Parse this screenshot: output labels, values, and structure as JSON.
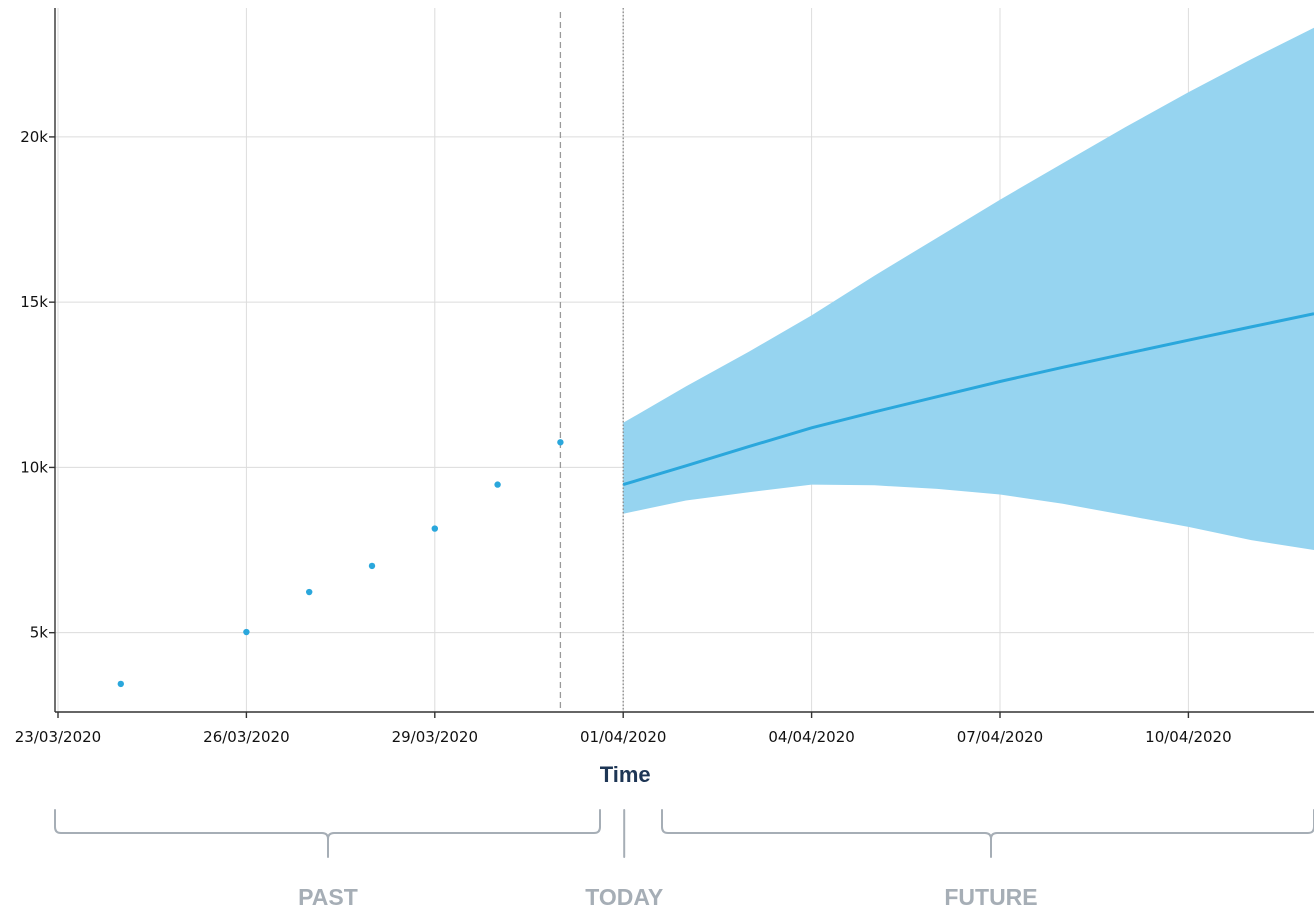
{
  "chart_data": {
    "type": "line",
    "xlabel": "Time",
    "ylabel": "",
    "xlim": [
      "2020-03-23",
      "2020-04-12"
    ],
    "ylim": [
      2600,
      23900
    ],
    "x_ticks": [
      "2020-03-23",
      "2020-03-26",
      "2020-03-29",
      "2020-04-01",
      "2020-04-04",
      "2020-04-07",
      "2020-04-10"
    ],
    "x_tick_labels": [
      "23/03/2020",
      "26/03/2020",
      "29/03/2020",
      "01/04/2020",
      "04/04/2020",
      "07/04/2020",
      "10/04/2020"
    ],
    "y_ticks": [
      5000,
      10000,
      15000,
      20000
    ],
    "y_tick_labels": [
      "5k",
      "10k",
      "15k",
      "20k"
    ],
    "grid": true,
    "series": [
      {
        "kind": "observed",
        "style": "scatter",
        "x": [
          "2020-03-24",
          "2020-03-26",
          "2020-03-27",
          "2020-03-28",
          "2020-03-29",
          "2020-03-30",
          "2020-03-31"
        ],
        "y": [
          3450,
          5020,
          6230,
          7020,
          8150,
          9480,
          10760
        ]
      },
      {
        "kind": "forecast",
        "style": "line",
        "x": [
          "2020-04-01",
          "2020-04-02",
          "2020-04-03",
          "2020-04-04",
          "2020-04-05",
          "2020-04-06",
          "2020-04-07",
          "2020-04-08",
          "2020-04-09",
          "2020-04-10",
          "2020-04-11",
          "2020-04-12"
        ],
        "y": [
          9480,
          10050,
          10630,
          11200,
          11680,
          12140,
          12600,
          13030,
          13440,
          13850,
          14250,
          14650
        ]
      }
    ],
    "forecast_interval": {
      "x": [
        "2020-04-01",
        "2020-04-02",
        "2020-04-03",
        "2020-04-04",
        "2020-04-05",
        "2020-04-06",
        "2020-04-07",
        "2020-04-08",
        "2020-04-09",
        "2020-04-10",
        "2020-04-11",
        "2020-04-12"
      ],
      "lower": [
        8600,
        9000,
        9250,
        9480,
        9460,
        9350,
        9180,
        8900,
        8550,
        8200,
        7800,
        7500
      ],
      "upper": [
        11350,
        12450,
        13500,
        14600,
        15800,
        16950,
        18100,
        19200,
        20300,
        21350,
        22350,
        23300
      ]
    },
    "markers": [
      {
        "x": "2020-03-31",
        "style": "dashed"
      },
      {
        "x": "2020-04-01",
        "style": "dotted"
      }
    ],
    "sections": [
      {
        "label": "PAST",
        "from": "2020-03-23",
        "to": "2020-03-31"
      },
      {
        "label": "TODAY",
        "at": "2020-04-01"
      },
      {
        "label": "FUTURE",
        "from": "2020-04-01",
        "to": "2020-04-12"
      }
    ],
    "colors": {
      "point": "#2aa7dc",
      "line": "#2aa7dc",
      "band": "#96d4f0",
      "grid": "#dcdcdc",
      "axis": "#333333",
      "axis_title": "#1e3655",
      "section": "#a6aeb6"
    }
  }
}
